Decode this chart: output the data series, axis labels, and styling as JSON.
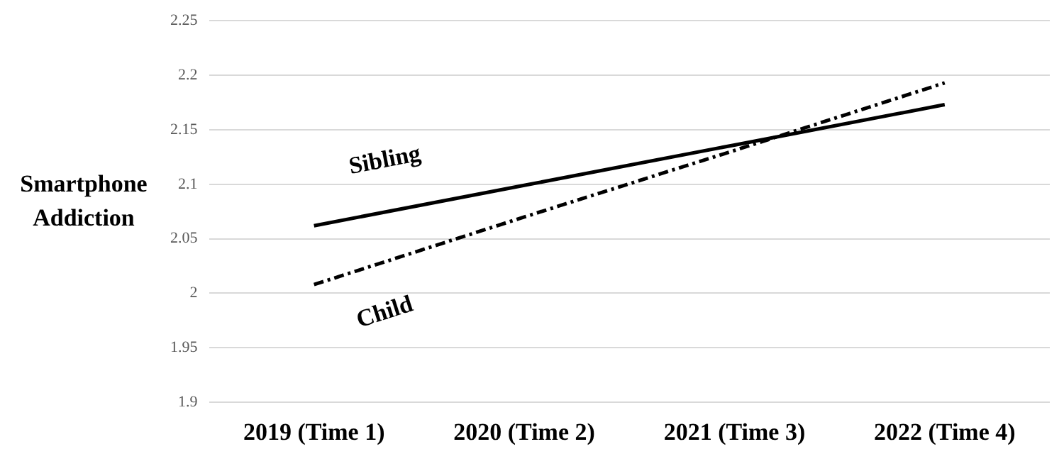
{
  "chart_data": {
    "type": "line",
    "ylabel": "Smartphone\nAddiction",
    "categories": [
      "2019 (Time 1)",
      "2020 (Time 2)",
      "2021 (Time 3)",
      "2022 (Time 4)"
    ],
    "series": [
      {
        "name": "Sibling",
        "color": "#000000",
        "line_style": "solid",
        "values": [
          2.062,
          2.099,
          2.136,
          2.173
        ]
      },
      {
        "name": "Child",
        "color": "#000000",
        "line_style": "dashdot",
        "values": [
          2.008,
          2.07,
          2.131,
          2.193
        ]
      }
    ],
    "ylim": [
      1.9,
      2.25
    ],
    "yticks": [
      1.9,
      1.95,
      2,
      2.05,
      2.1,
      2.15,
      2.2,
      2.25
    ],
    "grid": "y",
    "legend": false,
    "marker": "none"
  }
}
